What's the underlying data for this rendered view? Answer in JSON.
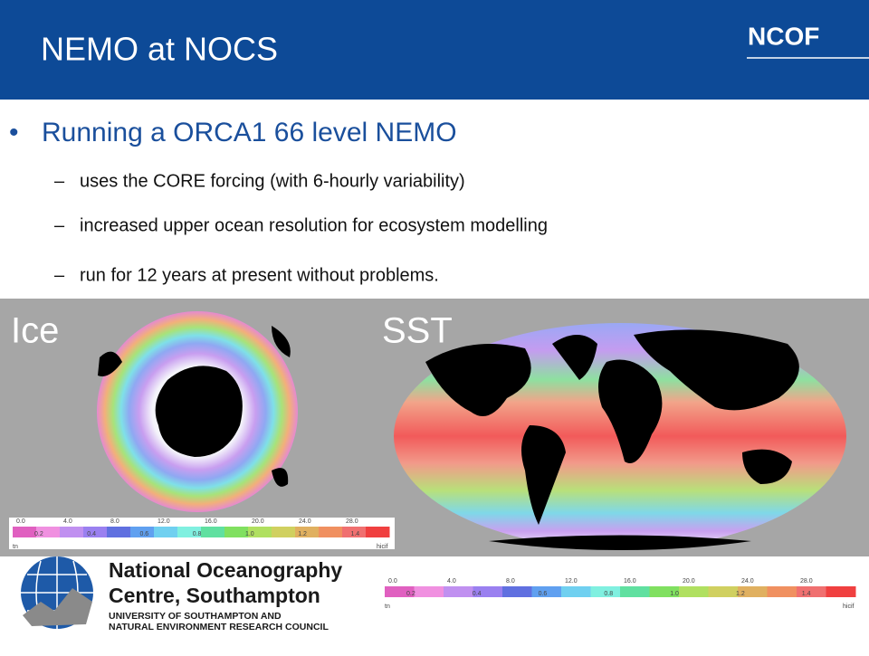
{
  "header": {
    "title": "NEMO at NOCS",
    "logo": "NCOF"
  },
  "bullet": {
    "text": "Running a ORCA1 66 level NEMO",
    "subitems": [
      "uses the CORE forcing (with 6-hourly variability)",
      "increased upper ocean resolution for ecosystem modelling",
      "run for 12 years at present without problems."
    ]
  },
  "figures": {
    "left_label": "Ice",
    "right_label": "SST"
  },
  "colorbar": {
    "top_labels": [
      "0.0",
      "4.0",
      "8.0",
      "12.0",
      "16.0",
      "20.0",
      "24.0",
      "28.0"
    ],
    "bottom_labels": [
      "0.2",
      "0.4",
      "0.6",
      "0.8",
      "1.0",
      "1.2",
      "1.4"
    ],
    "left_end": "tn",
    "right_end": "hicif"
  },
  "footer_logo": {
    "line1": "National Oceanography",
    "line2": "Centre, Southampton",
    "line3": "UNIVERSITY OF SOUTHAMPTON AND",
    "line4": "NATURAL ENVIRONMENT RESEARCH COUNCIL"
  }
}
